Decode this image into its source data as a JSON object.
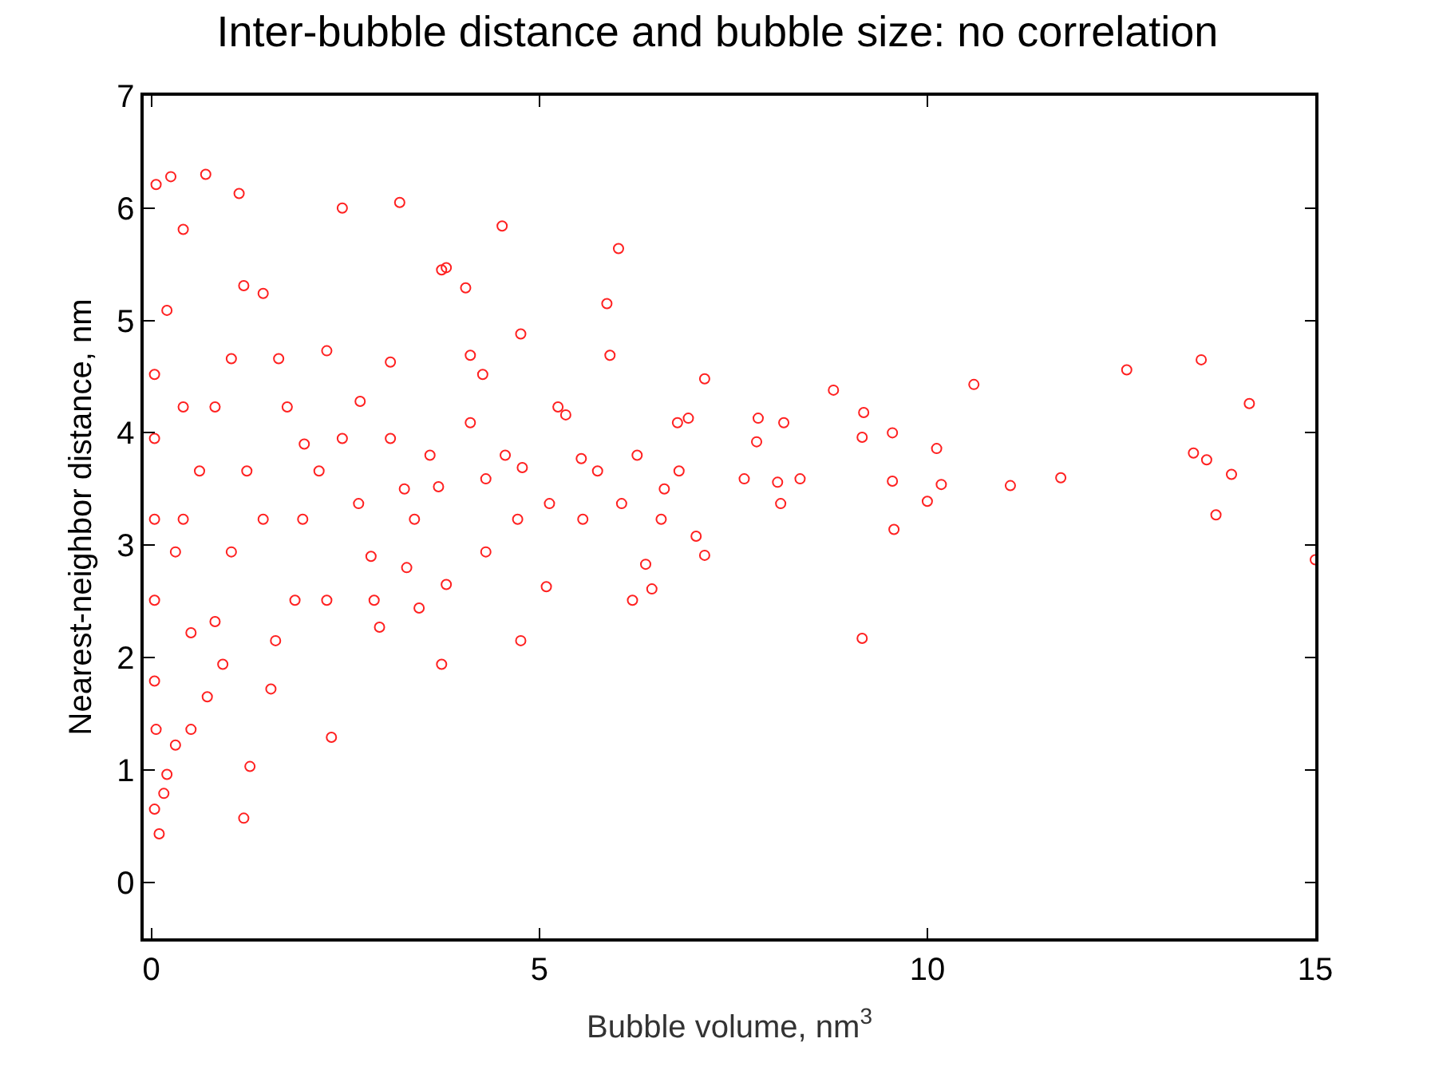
{
  "chart_data": {
    "type": "scatter",
    "title": "Inter-bubble distance and bubble size: no correlation",
    "xlabel": "Bubble volume, nm$^{3}$",
    "ylabel": "Nearest-neighbor distance, nm",
    "xlim": [
      -0.1,
      15
    ],
    "ylim": [
      -0.5,
      7
    ],
    "xticks": [
      0,
      5,
      10,
      15
    ],
    "yticks": [
      0,
      1,
      2,
      3,
      4,
      5,
      6,
      7
    ],
    "marker": "circle",
    "series": [
      {
        "color": "#ff2020",
        "x": [
          15,
          14.15,
          13.92,
          13.72,
          13.53,
          13.6,
          13.43,
          12.57,
          11.72,
          11.07,
          10.6,
          10.12,
          10.18,
          10.0,
          9.57,
          9.55,
          9.55,
          9.16,
          9.18,
          9.16,
          8.79,
          8.36,
          8.11,
          8.07,
          8.15,
          7.82,
          7.8,
          7.64,
          7.13,
          7.13,
          7.02,
          6.92,
          6.8,
          6.61,
          6.57,
          6.45,
          6.37,
          5.91,
          5.87,
          6.02,
          6.2,
          5.56,
          5.54,
          5.34,
          5.09,
          4.78,
          4.76,
          4.76,
          4.52,
          4.56,
          4.27,
          4.11,
          4.05,
          3.8,
          3.74,
          3.74,
          3.59,
          3.45,
          3.26,
          3.08,
          2.94,
          3.2,
          2.83,
          2.46,
          2.69,
          2.32,
          2.26,
          1.97,
          1.6,
          1.54,
          1.44,
          1.19,
          1.19,
          1.27,
          1.13,
          0.7,
          0.25,
          0.06,
          0.41,
          0.82,
          0.51,
          0.31,
          0.04,
          0.1,
          0.16,
          0.2,
          0.06,
          0.04,
          0.04,
          0.04,
          0.04,
          0.04,
          0.2,
          0.62,
          0.82,
          1.03,
          1.23,
          1.44,
          1.75,
          1.95,
          2.16,
          2.46,
          2.67,
          3.08,
          3.39,
          3.7,
          4.11,
          4.31,
          4.72,
          5.13,
          0.41,
          0.41,
          0.51,
          0.72,
          0.92,
          0.31,
          1.03,
          1.64,
          1.85,
          2.26,
          2.87,
          3.8,
          3.29,
          4.31,
          5.24,
          5.75,
          6.06,
          6.78,
          6.26
        ],
        "values": [
          2.87,
          4.26,
          3.63,
          3.27,
          4.65,
          3.76,
          3.82,
          4.56,
          3.6,
          3.53,
          4.43,
          3.86,
          3.54,
          3.39,
          3.14,
          3.57,
          4.0,
          2.17,
          4.18,
          3.96,
          4.38,
          3.59,
          3.37,
          3.56,
          4.09,
          4.13,
          3.92,
          3.59,
          4.48,
          2.91,
          3.08,
          4.13,
          3.66,
          3.5,
          3.23,
          2.61,
          2.83,
          4.69,
          5.15,
          5.64,
          2.51,
          3.23,
          3.77,
          4.16,
          2.63,
          3.69,
          4.88,
          2.15,
          5.84,
          3.8,
          4.52,
          4.69,
          5.29,
          5.47,
          5.45,
          1.94,
          3.8,
          2.44,
          3.5,
          4.63,
          2.27,
          6.05,
          2.9,
          6.0,
          4.28,
          1.29,
          4.73,
          3.9,
          2.15,
          1.72,
          5.24,
          5.31,
          0.57,
          1.03,
          6.13,
          6.3,
          6.28,
          6.21,
          5.81,
          2.32,
          1.36,
          1.22,
          0.65,
          0.43,
          0.79,
          0.96,
          1.36,
          1.79,
          2.51,
          3.23,
          3.95,
          4.52,
          5.09,
          3.66,
          4.23,
          2.94,
          3.66,
          3.23,
          4.23,
          3.23,
          3.66,
          3.95,
          3.37,
          3.95,
          3.23,
          3.52,
          4.09,
          2.94,
          3.23,
          3.37,
          4.23,
          3.23,
          2.22,
          1.65,
          1.94,
          2.94,
          4.66,
          4.66,
          2.51,
          2.51,
          2.51,
          2.65,
          2.8,
          3.59,
          4.23,
          3.66,
          3.37,
          4.09,
          3.8
        ]
      }
    ]
  }
}
